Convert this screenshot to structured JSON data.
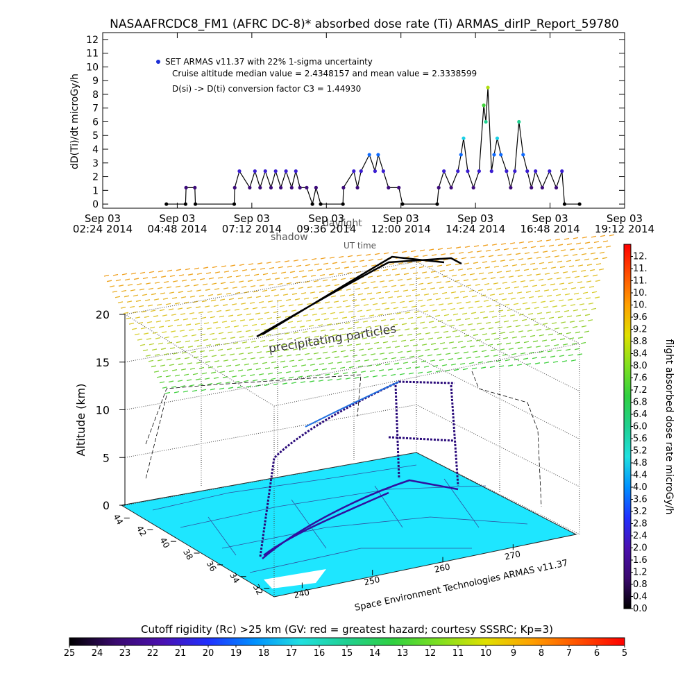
{
  "chart_data": [
    {
      "type": "line",
      "title": "NASAAFRCDC8_FM1 (AFRC DC-8)* absorbed dose rate (Ti) ARMAS_dirIP_Report_59780",
      "ylabel": "dD(Ti)/dt microGy/h",
      "annotations": [
        "Cruise altitude median value = 2.4348157 and mean value = 2.3338599",
        "D(si) -> D(ti) conversion factor C3 = 1.44930"
      ],
      "x": [
        "2014-09-03 04:27",
        "2014-09-03 05:04",
        "2014-09-03 05:05",
        "2014-09-03 05:22",
        "2014-09-03 05:23",
        "2014-09-03 06:38",
        "2014-09-03 06:39",
        "2014-09-03 06:48",
        "2014-09-03 07:08",
        "2014-09-03 07:18",
        "2014-09-03 07:28",
        "2014-09-03 07:38",
        "2014-09-03 07:49",
        "2014-09-03 07:58",
        "2014-09-03 08:08",
        "2014-09-03 08:18",
        "2014-09-03 08:29",
        "2014-09-03 08:37",
        "2014-09-03 08:45",
        "2014-09-03 08:58",
        "2014-09-03 09:09",
        "2014-09-03 09:16",
        "2014-09-03 09:25",
        "2014-09-03 10:08",
        "2014-09-03 10:09",
        "2014-09-03 10:29",
        "2014-09-03 10:36",
        "2014-09-03 10:43",
        "2014-09-03 10:59",
        "2014-09-03 11:10",
        "2014-09-03 11:16",
        "2014-09-03 11:26",
        "2014-09-03 11:36",
        "2014-09-03 11:56",
        "2014-09-03 12:03",
        "2014-09-03 13:10",
        "2014-09-03 13:13",
        "2014-09-03 13:23",
        "2014-09-03 13:37",
        "2014-09-03 13:50",
        "2014-09-03 13:56",
        "2014-09-03 14:01",
        "2014-09-03 14:09",
        "2014-09-03 14:20",
        "2014-09-03 14:31",
        "2014-09-03 14:40",
        "2014-09-03 14:44",
        "2014-09-03 14:48",
        "2014-09-03 14:55",
        "2014-09-03 15:00",
        "2014-09-03 15:06",
        "2014-09-03 15:13",
        "2014-09-03 15:24",
        "2014-09-03 15:32",
        "2014-09-03 15:40",
        "2014-09-03 15:48",
        "2014-09-03 15:56",
        "2014-09-03 16:04",
        "2014-09-03 16:12",
        "2014-09-03 16:20",
        "2014-09-03 16:33",
        "2014-09-03 16:47",
        "2014-09-03 17:00",
        "2014-09-03 17:11",
        "2014-09-03 17:16",
        "2014-09-03 17:45"
      ],
      "series": [
        {
          "name": "SET ARMAS v11.37 with 22% 1-sigma uncertainty",
          "color": "#000000",
          "marker_color": "#1c2fd6",
          "values": [
            0,
            0,
            1.2,
            1.2,
            0,
            0,
            1.2,
            2.4,
            1.2,
            2.4,
            1.2,
            2.4,
            1.2,
            2.4,
            1.2,
            2.4,
            1.2,
            2.4,
            1.2,
            1.2,
            0,
            1.2,
            0,
            0,
            1.2,
            2.4,
            1.2,
            2.4,
            3.6,
            2.4,
            3.6,
            2.4,
            1.2,
            1.2,
            0,
            0,
            1.2,
            2.4,
            1.2,
            2.4,
            3.6,
            4.8,
            2.4,
            1.2,
            2.4,
            7.2,
            6,
            8.5,
            2.4,
            3.6,
            4.8,
            3.6,
            2.4,
            1.2,
            2.4,
            6,
            3.6,
            2.4,
            1.2,
            2.4,
            1.2,
            2.4,
            1.2,
            2.4,
            0,
            0
          ]
        }
      ],
      "xlim": [
        "2014-09-03 02:24",
        "2014-09-03 19:12"
      ],
      "xticks": [
        {
          "value": "2014-09-03 02:24",
          "label": [
            "Sep 03",
            "02:24 2014"
          ]
        },
        {
          "value": "2014-09-03 04:48",
          "label": [
            "Sep 03",
            "04:48 2014"
          ]
        },
        {
          "value": "2014-09-03 07:12",
          "label": [
            "Sep 03",
            "07:12 2014"
          ]
        },
        {
          "value": "2014-09-03 09:36",
          "label": [
            "Sep 03",
            "09:36 2014"
          ]
        },
        {
          "value": "2014-09-03 12:00",
          "label": [
            "Sep 03",
            "12:00 2014"
          ]
        },
        {
          "value": "2014-09-03 14:24",
          "label": [
            "Sep 03",
            "14:24 2014"
          ]
        },
        {
          "value": "2014-09-03 16:48",
          "label": [
            "Sep 03",
            "16:48 2014"
          ]
        },
        {
          "value": "2014-09-03 19:12",
          "label": [
            "Sep 03",
            "19:12 2014"
          ]
        }
      ],
      "ylim": [
        -0.3,
        12.5
      ],
      "yticks": [
        0,
        1,
        2,
        3,
        4,
        5,
        6,
        7,
        8,
        9,
        10,
        11,
        12
      ]
    },
    {
      "type": "colorbar",
      "orientation": "vertical",
      "label": "flight absorbed dose rate microGy/h",
      "colors": [
        "#000000",
        "#3a0a6e",
        "#4b10b0",
        "#2030ff",
        "#0090ff",
        "#20e0e0",
        "#20d090",
        "#30d040",
        "#80e020",
        "#e0e000",
        "#ffa000",
        "#ff5000",
        "#ff0000"
      ],
      "lim": [
        0,
        12
      ],
      "ticks": [
        {
          "value": 0,
          "label": "0.0"
        },
        0.4,
        0.8,
        1.2,
        1.6,
        {
          "value": 2,
          "label": "2.0"
        },
        2.4,
        2.8,
        3.2,
        3.6,
        {
          "value": 4,
          "label": "4.0"
        },
        4.4,
        4.8,
        5.2,
        5.6,
        {
          "value": 6,
          "label": "6.0"
        },
        6.4,
        6.8,
        7.2,
        7.6,
        {
          "value": 8,
          "label": "8.0"
        },
        8.4,
        8.8,
        9.2,
        9.6,
        {
          "value": 10,
          "label": "10."
        },
        {
          "value": 10.4,
          "label": "10."
        },
        {
          "value": 10.8,
          "label": "11."
        },
        {
          "value": 11.2,
          "label": "11."
        },
        {
          "value": 11.6,
          "label": "12."
        }
      ]
    },
    {
      "type": "colorbar",
      "orientation": "horizontal",
      "title": "Cutoff rigidity (Rc) >25 km (GV: red = greatest hazard; courtesy SSSRC; Kp=3)",
      "colors": [
        "#000000",
        "#3a0a6e",
        "#4b10b0",
        "#2030ff",
        "#0090ff",
        "#20e0e0",
        "#20d090",
        "#30d040",
        "#80e020",
        "#e0e000",
        "#ffa000",
        "#ff5000",
        "#ff0000"
      ],
      "lim": [
        25,
        5
      ],
      "ticks": [
        25,
        24,
        23,
        22,
        21,
        20,
        19,
        18,
        17,
        16,
        15,
        14,
        13,
        12,
        11,
        10,
        9,
        8,
        7,
        6,
        5
      ]
    },
    {
      "type": "surface3d",
      "zlabel": "Altitude (km)",
      "zlim": [
        0,
        20
      ],
      "zticks": [
        0,
        5,
        10,
        15,
        20
      ],
      "latlim": [
        45,
        31
      ],
      "lat_ticks": [
        44,
        42,
        40,
        38,
        36,
        34,
        32
      ],
      "lonlim": [
        237,
        275
      ],
      "lon_ticks": [
        240,
        250,
        260,
        270
      ],
      "credit": "Space Environment Technologies ARMAS v11.37",
      "field_label": "precipitating particles",
      "annotations": [
        "shadow",
        "daylight",
        "UT time"
      ]
    }
  ]
}
